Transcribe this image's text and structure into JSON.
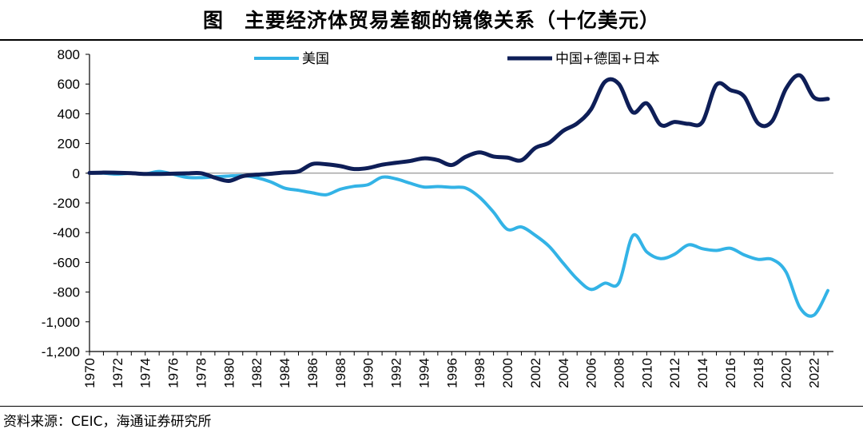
{
  "chart_data": {
    "type": "line",
    "title": "图　主要经济体贸易差额的镜像关系（十亿美元）",
    "xlabel": "",
    "ylabel": "",
    "ylim": [
      -1200,
      800
    ],
    "yticks": [
      800,
      600,
      400,
      200,
      0,
      -200,
      -400,
      -600,
      -800,
      -1000,
      -1200
    ],
    "ytick_labels": [
      "800",
      "600",
      "400",
      "200",
      "0",
      "-200",
      "-400",
      "-600",
      "-800",
      "-1,000",
      "-1,200"
    ],
    "xticks": [
      "1970",
      "1972",
      "1974",
      "1976",
      "1978",
      "1980",
      "1982",
      "1984",
      "1986",
      "1988",
      "1990",
      "1992",
      "1994",
      "1996",
      "1998",
      "2000",
      "2002",
      "2004",
      "2006",
      "2008",
      "2010",
      "2012",
      "2014",
      "2016",
      "2018",
      "2020",
      "2022"
    ],
    "x": [
      1970,
      1971,
      1972,
      1973,
      1974,
      1975,
      1976,
      1977,
      1978,
      1979,
      1980,
      1981,
      1982,
      1983,
      1984,
      1985,
      1986,
      1987,
      1988,
      1989,
      1990,
      1991,
      1992,
      1993,
      1994,
      1995,
      1996,
      1997,
      1998,
      1999,
      2000,
      2001,
      2002,
      2003,
      2004,
      2005,
      2006,
      2007,
      2008,
      2009,
      2010,
      2011,
      2012,
      2013,
      2014,
      2015,
      2016,
      2017,
      2018,
      2019,
      2020,
      2021,
      2022,
      2023
    ],
    "legend": "top",
    "series": [
      {
        "name": "美国",
        "color": "#33b3e6",
        "values": [
          2,
          0,
          -6,
          0,
          -5,
          12,
          -7,
          -28,
          -30,
          -24,
          -19,
          -16,
          -30,
          -58,
          -100,
          -115,
          -132,
          -145,
          -108,
          -88,
          -77,
          -27,
          -38,
          -67,
          -93,
          -90,
          -95,
          -100,
          -162,
          -262,
          -378,
          -362,
          -418,
          -493,
          -605,
          -712,
          -782,
          -740,
          -738,
          -420,
          -530,
          -575,
          -545,
          -482,
          -508,
          -520,
          -505,
          -550,
          -580,
          -580,
          -665,
          -905,
          -955,
          -790
        ]
      },
      {
        "name": "中国+德国+日本",
        "color": "#0e1e57",
        "values": [
          2,
          4,
          3,
          0,
          -5,
          -5,
          -3,
          -1,
          0,
          -30,
          -52,
          -20,
          -10,
          -4,
          5,
          12,
          62,
          60,
          48,
          28,
          35,
          57,
          70,
          82,
          100,
          88,
          55,
          110,
          140,
          112,
          105,
          87,
          170,
          205,
          285,
          335,
          430,
          615,
          600,
          410,
          470,
          325,
          345,
          332,
          345,
          595,
          560,
          515,
          335,
          350,
          570,
          658,
          510,
          500
        ]
      }
    ],
    "source": "资料来源：CEIC，海通证券研究所"
  }
}
